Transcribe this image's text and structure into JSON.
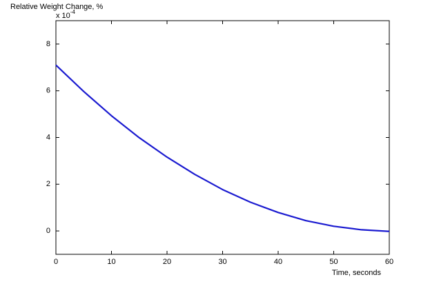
{
  "chart_data": {
    "type": "line",
    "y_label": "Relative Weight Change, %",
    "y_multiplier": {
      "base": "x 10",
      "exponent": "-4"
    },
    "x_label": "Time, seconds",
    "x": [
      0,
      5,
      10,
      15,
      20,
      25,
      30,
      35,
      40,
      45,
      50,
      55,
      60
    ],
    "series": [
      {
        "color": "#1a1ad0",
        "values": [
          7.1,
          5.97,
          4.93,
          3.99,
          3.16,
          2.42,
          1.77,
          1.23,
          0.79,
          0.44,
          0.2,
          0.05,
          -0.02
        ]
      }
    ],
    "xlim": [
      0,
      60
    ],
    "xticks": [
      0,
      10,
      20,
      30,
      40,
      50,
      60
    ],
    "ylim": [
      -1,
      9
    ],
    "yticks": [
      0,
      2,
      4,
      6,
      8
    ],
    "grid": false
  }
}
